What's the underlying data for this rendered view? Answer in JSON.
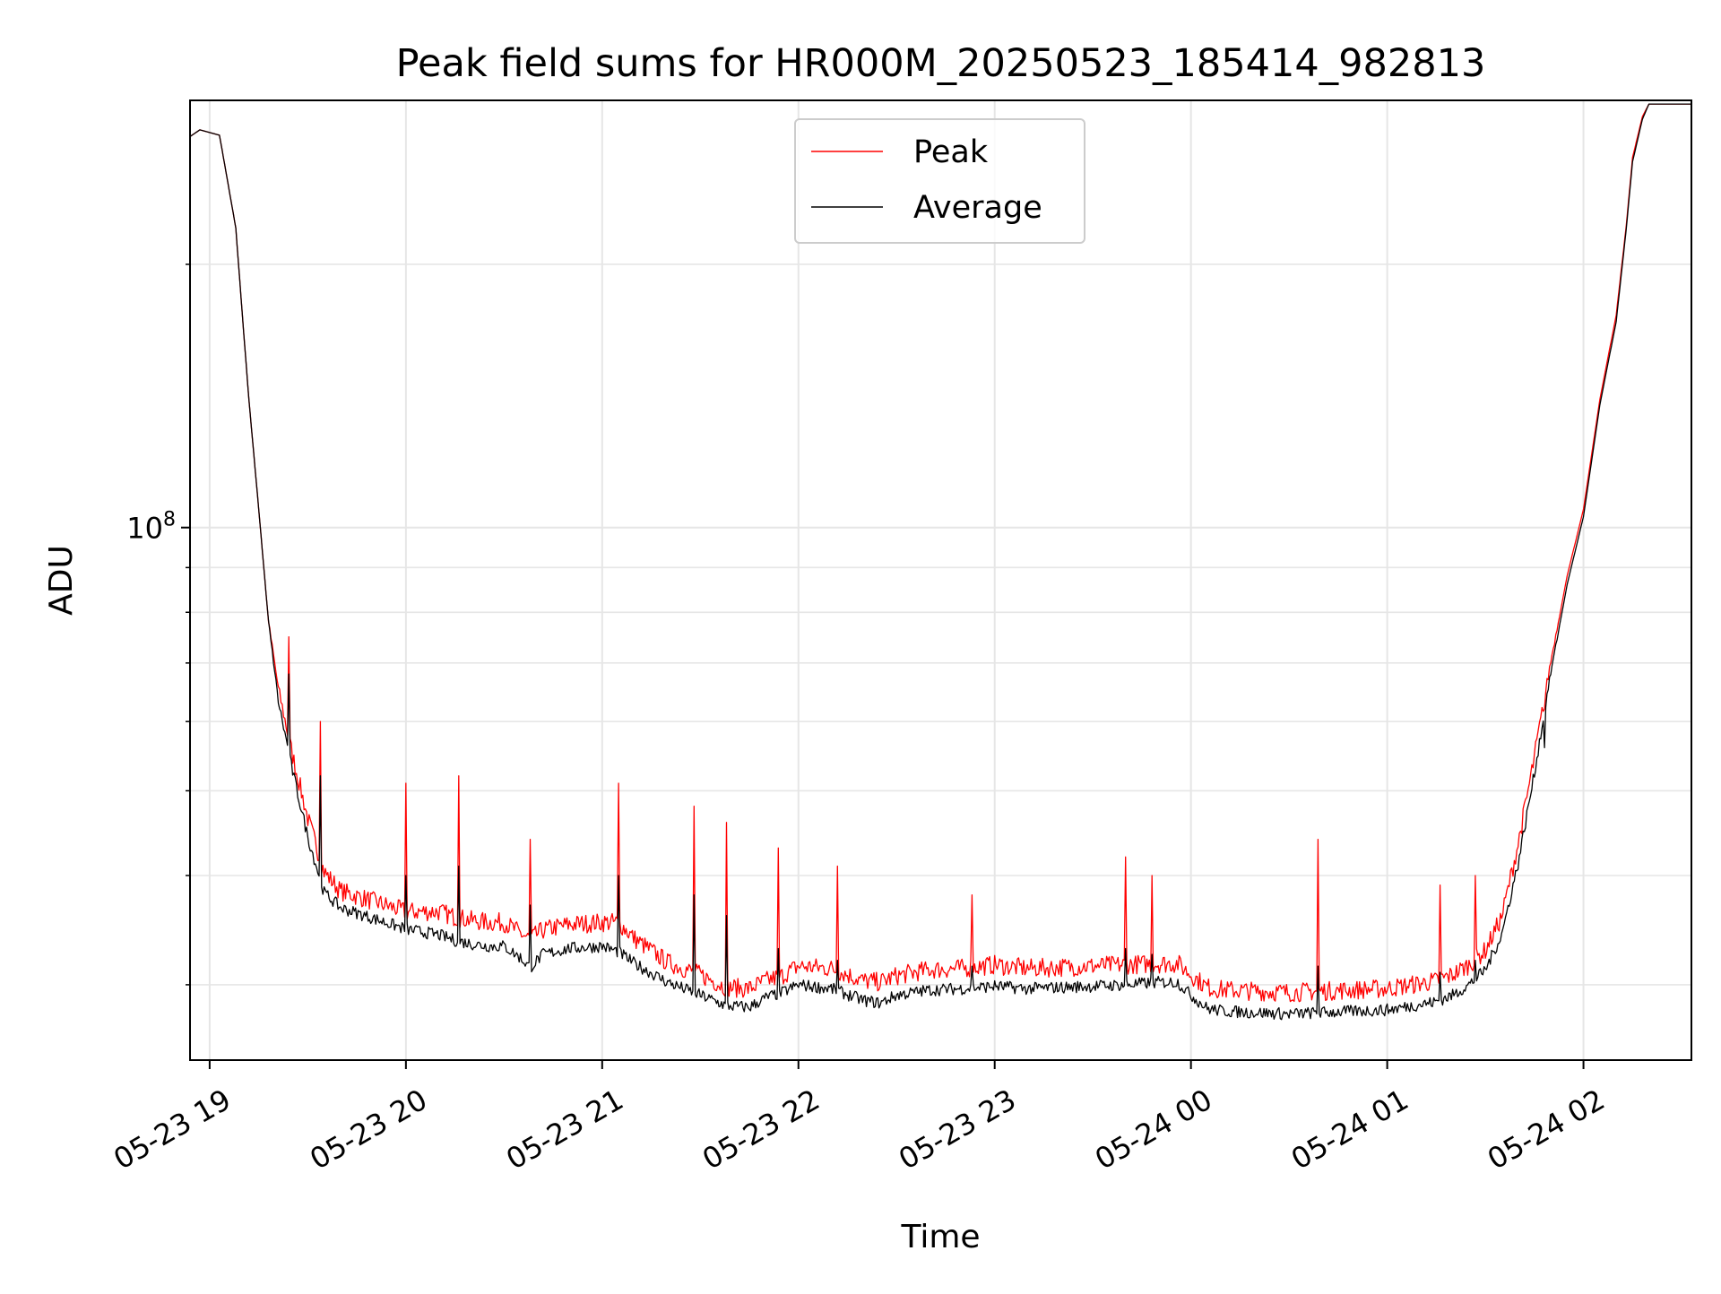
{
  "chart_data": {
    "type": "line",
    "title": "Peak field sums for HR000M_20250523_185414_982813",
    "xlabel": "Time",
    "ylabel": "ADU",
    "yscale": "log",
    "grid": true,
    "legend": {
      "placement": "upper center",
      "entries": [
        "Peak",
        "Average"
      ]
    },
    "xlim": [
      "2025-05-23 18:54",
      "2025-05-24 02:33"
    ],
    "ylim": [
      24600000,
      308000000
    ],
    "x_ticks": [
      {
        "value": "2025-05-23 19:00",
        "label": "05-23 19"
      },
      {
        "value": "2025-05-23 20:00",
        "label": "05-23 20"
      },
      {
        "value": "2025-05-23 21:00",
        "label": "05-23 21"
      },
      {
        "value": "2025-05-23 22:00",
        "label": "05-23 22"
      },
      {
        "value": "2025-05-23 23:00",
        "label": "05-23 23"
      },
      {
        "value": "2025-05-24 00:00",
        "label": "05-24 00"
      },
      {
        "value": "2025-05-24 01:00",
        "label": "05-24 01"
      },
      {
        "value": "2025-05-24 02:00",
        "label": "05-24 02"
      }
    ],
    "y_ticks": [
      {
        "value": 100000000,
        "label_base": "10",
        "label_exp": "8"
      }
    ],
    "y_minor_ticks": [
      30000000,
      40000000,
      50000000,
      60000000,
      70000000,
      80000000,
      90000000,
      200000000
    ],
    "x": [
      "2025-05-23 18:54",
      "2025-05-23 18:57",
      "2025-05-23 19:00",
      "2025-05-23 19:03",
      "2025-05-23 19:05",
      "2025-05-23 19:08",
      "2025-05-23 19:10",
      "2025-05-23 19:12",
      "2025-05-23 19:15",
      "2025-05-23 19:18",
      "2025-05-23 19:21",
      "2025-05-23 19:25",
      "2025-05-23 19:30",
      "2025-05-23 19:35",
      "2025-05-23 19:40",
      "2025-05-23 19:45",
      "2025-05-23 19:50",
      "2025-05-23 19:55",
      "2025-05-23 20:00",
      "2025-05-23 20:10",
      "2025-05-23 20:15",
      "2025-05-23 20:20",
      "2025-05-23 20:25",
      "2025-05-23 20:30",
      "2025-05-23 20:35",
      "2025-05-23 20:38",
      "2025-05-23 20:42",
      "2025-05-23 20:50",
      "2025-05-23 21:00",
      "2025-05-23 21:05",
      "2025-05-23 21:10",
      "2025-05-23 21:20",
      "2025-05-23 21:30",
      "2025-05-23 21:38",
      "2025-05-23 21:45",
      "2025-05-23 21:50",
      "2025-05-23 21:55",
      "2025-05-23 22:00",
      "2025-05-23 22:10",
      "2025-05-23 22:20",
      "2025-05-23 22:25",
      "2025-05-23 22:30",
      "2025-05-23 22:40",
      "2025-05-23 22:50",
      "2025-05-23 23:00",
      "2025-05-23 23:10",
      "2025-05-23 23:20",
      "2025-05-23 23:30",
      "2025-05-23 23:40",
      "2025-05-23 23:50",
      "2025-05-23 23:56",
      "2025-05-24 00:00",
      "2025-05-24 00:05",
      "2025-05-24 00:10",
      "2025-05-24 00:20",
      "2025-05-24 00:30",
      "2025-05-24 00:40",
      "2025-05-24 00:50",
      "2025-05-24 01:00",
      "2025-05-24 01:10",
      "2025-05-24 01:15",
      "2025-05-24 01:20",
      "2025-05-24 01:25",
      "2025-05-24 01:30",
      "2025-05-24 01:35",
      "2025-05-24 01:40",
      "2025-05-24 01:45",
      "2025-05-24 01:50",
      "2025-05-24 01:55",
      "2025-05-24 02:00",
      "2025-05-24 02:05",
      "2025-05-24 02:10",
      "2025-05-24 02:13",
      "2025-05-24 02:15",
      "2025-05-24 02:18",
      "2025-05-24 02:20",
      "2025-05-24 02:33"
    ],
    "series": [
      {
        "name": "Peak",
        "color": "#ff0000",
        "values": [
          280000000,
          285000000,
          283000000,
          281000000,
          255000000,
          220000000,
          175000000,
          140000000,
          105000000,
          78000000,
          65000000,
          55000000,
          46000000,
          40000000,
          38000000,
          37500000,
          37000000,
          36500000,
          36000000,
          36000000,
          35500000,
          35200000,
          35000000,
          35000000,
          34000000,
          33500000,
          34300000,
          34800000,
          35000000,
          35000000,
          33500000,
          31500000,
          30500000,
          29500000,
          29400000,
          30000000,
          30400000,
          31200000,
          31000000,
          30000000,
          29900000,
          30400000,
          30900000,
          31000000,
          31300000,
          31000000,
          31100000,
          31200000,
          31300000,
          31400000,
          31400000,
          30500000,
          29500000,
          29300000,
          29200000,
          29100000,
          29200000,
          29300000,
          29400000,
          29800000,
          30000000,
          30500000,
          31300000,
          32500000,
          35500000,
          43000000,
          54000000,
          70000000,
          88000000,
          105000000,
          140000000,
          175000000,
          220000000,
          265000000,
          295000000,
          305000000,
          305000000
        ]
      },
      {
        "name": "Average",
        "color": "#000000",
        "values": [
          280000000,
          285000000,
          283000000,
          281000000,
          255000000,
          220000000,
          175000000,
          140000000,
          105000000,
          78000000,
          63000000,
          53000000,
          44000000,
          38000000,
          36500000,
          36000000,
          35500000,
          35000000,
          34500000,
          34000000,
          33500000,
          33200000,
          33000000,
          33000000,
          32000000,
          31200000,
          32300000,
          32800000,
          33000000,
          32500000,
          31500000,
          30000000,
          29000000,
          28200000,
          28100000,
          28800000,
          29200000,
          29800000,
          29500000,
          28600000,
          28400000,
          29000000,
          29400000,
          29500000,
          29700000,
          29500000,
          29600000,
          29700000,
          29800000,
          30000000,
          30000000,
          29000000,
          28000000,
          27800000,
          27700000,
          27600000,
          27700000,
          27800000,
          27900000,
          28300000,
          28500000,
          29000000,
          29800000,
          31000000,
          34000000,
          41000000,
          52000000,
          68000000,
          86000000,
          103000000,
          138000000,
          172000000,
          218000000,
          262000000,
          293000000,
          305000000,
          305000000
        ]
      }
    ],
    "spikes": [
      {
        "x": "2025-05-23 19:24",
        "peak": 75000000,
        "average": 68000000
      },
      {
        "x": "2025-05-23 19:34",
        "peak": 60000000,
        "average": 52000000
      },
      {
        "x": "2025-05-23 20:00",
        "peak": 51000000,
        "average": 40000000
      },
      {
        "x": "2025-05-23 20:16",
        "peak": 52000000,
        "average": 41000000
      },
      {
        "x": "2025-05-23 20:38",
        "peak": 44000000,
        "average": 37000000
      },
      {
        "x": "2025-05-23 21:05",
        "peak": 51000000,
        "average": 40000000
      },
      {
        "x": "2025-05-23 21:28",
        "peak": 48000000,
        "average": 38000000
      },
      {
        "x": "2025-05-23 21:38",
        "peak": 46000000,
        "average": 36000000
      },
      {
        "x": "2025-05-23 21:54",
        "peak": 43000000,
        "average": 33000000
      },
      {
        "x": "2025-05-23 22:12",
        "peak": 41000000,
        "average": 32000000
      },
      {
        "x": "2025-05-23 22:53",
        "peak": 38000000,
        "average": 31500000
      },
      {
        "x": "2025-05-23 23:40",
        "peak": 42000000,
        "average": 33000000
      },
      {
        "x": "2025-05-23 23:48",
        "peak": 40000000,
        "average": 32500000
      },
      {
        "x": "2025-05-24 00:39",
        "peak": 44000000,
        "average": 31500000
      },
      {
        "x": "2025-05-24 01:16",
        "peak": 39000000,
        "average": 31000000
      },
      {
        "x": "2025-05-24 01:27",
        "peak": 40000000,
        "average": 32000000
      },
      {
        "x": "2025-05-24 01:48",
        "peak": 62000000,
        "average": 56000000
      }
    ]
  }
}
